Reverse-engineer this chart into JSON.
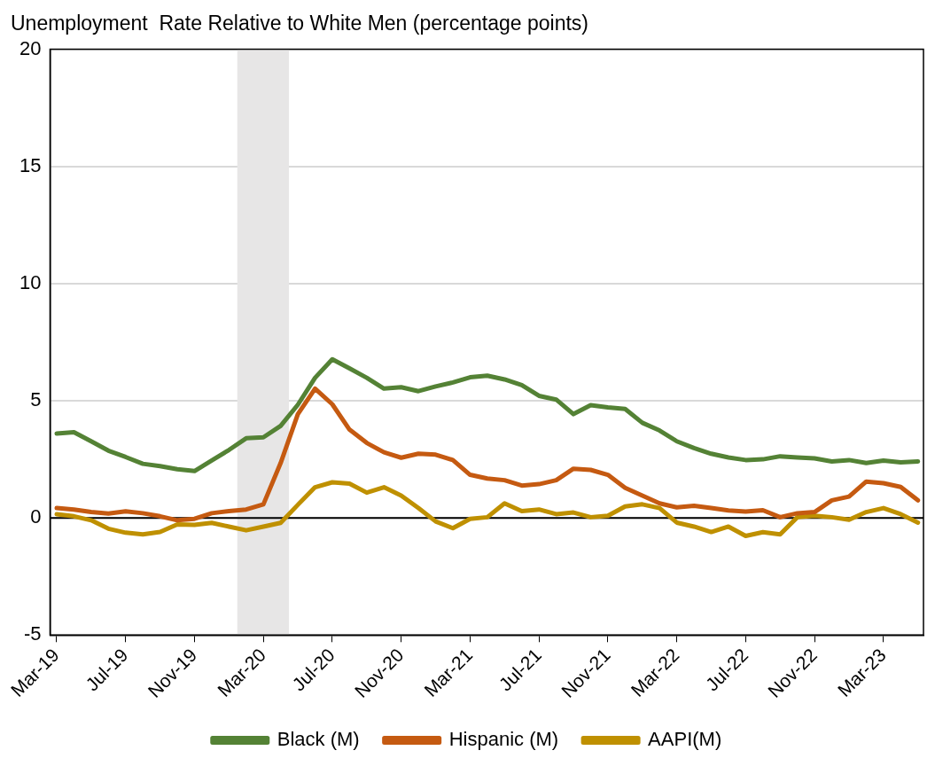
{
  "chart_data": {
    "type": "line",
    "title": "Unemployment  Rate Relative to White Men (percentage points)",
    "x": [
      "2019-03",
      "2019-04",
      "2019-05",
      "2019-06",
      "2019-07",
      "2019-08",
      "2019-09",
      "2019-10",
      "2019-11",
      "2019-12",
      "2020-01",
      "2020-02",
      "2020-03",
      "2020-04",
      "2020-05",
      "2020-06",
      "2020-07",
      "2020-08",
      "2020-09",
      "2020-10",
      "2020-11",
      "2020-12",
      "2021-01",
      "2021-02",
      "2021-03",
      "2021-04",
      "2021-05",
      "2021-06",
      "2021-07",
      "2021-08",
      "2021-09",
      "2021-10",
      "2021-11",
      "2021-12",
      "2022-01",
      "2022-02",
      "2022-03",
      "2022-04",
      "2022-05",
      "2022-06",
      "2022-07",
      "2022-08",
      "2022-09",
      "2022-10",
      "2022-11",
      "2022-12",
      "2023-01",
      "2023-02",
      "2023-03",
      "2023-04",
      "2023-05"
    ],
    "series": [
      {
        "name": "Black (M)",
        "color": "#548235",
        "values": [
          3.6,
          3.66,
          3.27,
          2.87,
          2.6,
          2.31,
          2.21,
          2.08,
          2.0,
          2.45,
          2.9,
          3.4,
          3.44,
          3.93,
          4.83,
          5.98,
          6.77,
          6.38,
          5.98,
          5.52,
          5.58,
          5.41,
          5.61,
          5.78,
          6.0,
          6.07,
          5.91,
          5.67,
          5.21,
          5.05,
          4.43,
          4.81,
          4.72,
          4.65,
          4.06,
          3.73,
          3.27,
          2.98,
          2.74,
          2.58,
          2.47,
          2.5,
          2.63,
          2.58,
          2.54,
          2.41,
          2.47,
          2.34,
          2.45,
          2.37,
          2.41
        ]
      },
      {
        "name": "Hispanic (M)",
        "color": "#c55a11",
        "values": [
          0.42,
          0.36,
          0.25,
          0.19,
          0.28,
          0.2,
          0.07,
          -0.1,
          -0.04,
          0.2,
          0.29,
          0.36,
          0.58,
          2.34,
          4.43,
          5.52,
          4.85,
          3.77,
          3.2,
          2.8,
          2.57,
          2.74,
          2.7,
          2.47,
          1.84,
          1.68,
          1.61,
          1.38,
          1.44,
          1.61,
          2.1,
          2.05,
          1.84,
          1.28,
          0.95,
          0.62,
          0.45,
          0.52,
          0.42,
          0.32,
          0.27,
          0.33,
          0.03,
          0.2,
          0.25,
          0.75,
          0.91,
          1.55,
          1.48,
          1.32,
          0.75
        ]
      },
      {
        "name": "AAPI(M)",
        "color": "#bf9000",
        "values": [
          0.16,
          0.07,
          -0.1,
          -0.46,
          -0.63,
          -0.7,
          -0.6,
          -0.28,
          -0.3,
          -0.21,
          -0.37,
          -0.53,
          -0.37,
          -0.21,
          0.56,
          1.31,
          1.52,
          1.46,
          1.08,
          1.31,
          0.95,
          0.42,
          -0.15,
          -0.44,
          -0.04,
          0.03,
          0.62,
          0.29,
          0.36,
          0.16,
          0.23,
          0.03,
          0.09,
          0.49,
          0.58,
          0.42,
          -0.2,
          -0.37,
          -0.6,
          -0.37,
          -0.77,
          -0.61,
          -0.7,
          0.03,
          0.09,
          0.03,
          -0.08,
          0.25,
          0.42,
          0.16,
          -0.2
        ]
      }
    ],
    "xlim": [
      "2019-02-20",
      "2023-05-11"
    ],
    "xticks": [
      {
        "value": "2019-03",
        "label": "Mar-19"
      },
      {
        "value": "2019-07",
        "label": "Jul-19"
      },
      {
        "value": "2019-11",
        "label": "Nov-19"
      },
      {
        "value": "2020-03",
        "label": "Mar-20"
      },
      {
        "value": "2020-07",
        "label": "Jul-20"
      },
      {
        "value": "2020-11",
        "label": "Nov-20"
      },
      {
        "value": "2021-03",
        "label": "Mar-21"
      },
      {
        "value": "2021-07",
        "label": "Jul-21"
      },
      {
        "value": "2021-11",
        "label": "Nov-21"
      },
      {
        "value": "2022-03",
        "label": "Mar-22"
      },
      {
        "value": "2022-07",
        "label": "Jul-22"
      },
      {
        "value": "2022-11",
        "label": "Nov-22"
      },
      {
        "value": "2023-03",
        "label": "Mar-23"
      }
    ],
    "ylim": [
      -5,
      20
    ],
    "yticks": [
      -5,
      0,
      5,
      10,
      15,
      20
    ],
    "bands": [
      {
        "axis": "x",
        "from": "2020-01-16",
        "to": "2020-04-16",
        "color": "#e7e6e6"
      }
    ],
    "grid": "y",
    "legend": "bottom"
  }
}
